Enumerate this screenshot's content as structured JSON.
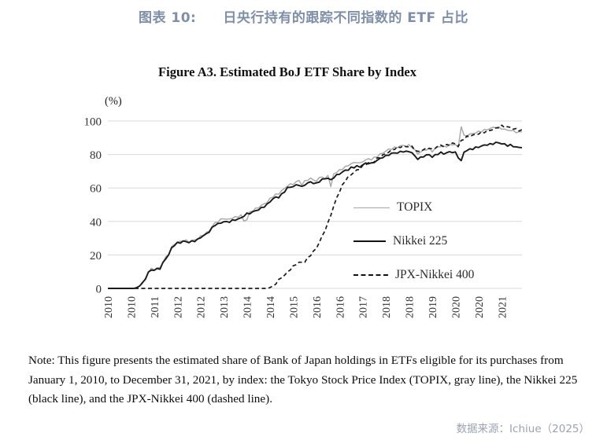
{
  "header": {
    "tag": "图表 10:",
    "title": "日央行持有的跟踪不同指数的 ETF 占比",
    "color": "#7e8fa9"
  },
  "chart_data": {
    "type": "line",
    "title": "Figure A3.  Estimated BoJ ETF Share by Index",
    "ylabel": "(%)",
    "ylim": [
      0,
      100
    ],
    "yticks": [
      0,
      20,
      40,
      60,
      80,
      100
    ],
    "grid": true,
    "legend_position": "inside-right",
    "x_start": "2010-01",
    "x_end": "2021-12",
    "x_unit": "month",
    "xtick_interval_months": 8,
    "xtick_labels": [
      "2010",
      "2010",
      "2011",
      "2012",
      "2012",
      "2013",
      "2014",
      "2014",
      "2015",
      "2016",
      "2016",
      "2017",
      "2018",
      "2018",
      "2019",
      "2020",
      "2020",
      "2021"
    ],
    "grid_color": "#d9d9d9",
    "series": [
      {
        "name": "TOPIX",
        "color": "#a6a6a6",
        "style": "solid",
        "values": [
          0,
          0,
          0,
          0,
          0,
          0,
          0,
          0,
          0,
          0,
          0.5,
          1.5,
          3,
          6,
          10,
          11.5,
          11.5,
          12,
          12.5,
          15.5,
          18.5,
          20.5,
          24.5,
          26.5,
          27.5,
          28,
          28.5,
          28.5,
          28,
          28.5,
          29,
          29.5,
          31,
          32,
          33,
          34.5,
          37,
          39,
          40,
          41,
          42,
          41,
          41.5,
          42,
          42.5,
          43,
          43.5,
          40.5,
          41,
          45.5,
          46.5,
          47.5,
          48.5,
          49.5,
          50.5,
          51.5,
          53.5,
          55,
          56,
          56.5,
          58.5,
          59.5,
          61.5,
          62,
          62.5,
          63.5,
          64.5,
          62,
          64,
          65,
          65.5,
          65,
          64,
          66,
          67,
          65,
          68,
          60.5,
          68.5,
          69.5,
          70.5,
          71.5,
          72.5,
          73.5,
          74.5,
          75,
          75.5,
          74.5,
          76,
          76.5,
          77.5,
          77,
          78,
          79,
          80,
          81,
          82,
          83,
          83.5,
          84,
          84.5,
          85,
          85.5,
          85,
          85.5,
          84.5,
          82.5,
          80.5,
          81.5,
          82.5,
          83,
          83.5,
          82,
          83.5,
          84.5,
          85,
          84.5,
          85,
          85.5,
          86,
          86,
          84,
          97,
          91,
          91.5,
          92,
          92.5,
          93,
          93.5,
          94,
          94.5,
          95,
          95.5,
          96,
          96.5,
          96,
          95.5,
          95,
          94.5,
          94.5,
          94,
          93.5,
          93.2,
          93.8
        ]
      },
      {
        "name": "Nikkei 225",
        "color": "#1a1a1a",
        "style": "solid",
        "values": [
          0,
          0,
          0,
          0,
          0,
          0,
          0,
          0,
          0,
          0,
          0.5,
          1.5,
          3,
          6,
          9.5,
          11,
          11,
          11.5,
          12,
          15,
          18,
          20,
          24,
          26,
          27,
          27.5,
          28,
          28,
          27.5,
          28,
          28.5,
          29,
          30.5,
          31.5,
          32.5,
          34,
          36,
          38,
          38.5,
          39,
          40,
          39.5,
          40,
          40.5,
          41,
          41.5,
          42,
          43.5,
          44.5,
          45,
          45.5,
          46.5,
          47,
          48,
          49,
          50,
          52,
          53.5,
          54.5,
          54.5,
          56,
          58,
          60,
          60.5,
          61,
          61.5,
          62,
          60.5,
          62,
          63,
          63.5,
          63,
          62.5,
          64,
          65,
          65.5,
          66,
          64.5,
          66.5,
          67.5,
          68.5,
          69.5,
          70.5,
          71,
          72,
          72.5,
          73,
          72.5,
          74,
          74.5,
          75,
          74.5,
          75.5,
          76.5,
          77.5,
          78.5,
          79,
          80,
          80.5,
          81,
          81,
          81.5,
          82,
          81.5,
          82,
          81,
          79,
          77.5,
          78,
          79,
          79.5,
          80,
          78.5,
          79.5,
          80.5,
          81,
          80.5,
          81,
          81.5,
          81.5,
          81,
          78.5,
          76,
          81.5,
          82.5,
          83,
          83.5,
          84,
          84.5,
          85,
          85.5,
          86,
          86,
          86.5,
          87,
          87,
          86.5,
          86,
          85.5,
          85.5,
          85,
          84.5,
          84,
          84.5
        ]
      },
      {
        "name": "JPX-Nikkei 400",
        "color": "#1a1a1a",
        "style": "dashed",
        "values": [
          0,
          0,
          0,
          0,
          0,
          0,
          0,
          0,
          0,
          0,
          0,
          0,
          0,
          0,
          0,
          0,
          0,
          0,
          0,
          0,
          0,
          0,
          0,
          0,
          0,
          0,
          0,
          0,
          0,
          0,
          0,
          0,
          0,
          0,
          0,
          0,
          0,
          0,
          0,
          0,
          0,
          0,
          0,
          0,
          0,
          0,
          0,
          0,
          0,
          0,
          0,
          0,
          0,
          0,
          0,
          0,
          0.5,
          1.5,
          3,
          5,
          6.5,
          8,
          9.5,
          11.5,
          13,
          14.5,
          15.5,
          15.5,
          16,
          18,
          20,
          22,
          24,
          27.5,
          31,
          35,
          39,
          44,
          49,
          54,
          58,
          61.5,
          64.5,
          66.5,
          68,
          69.5,
          70.5,
          71.5,
          73,
          74,
          75,
          74.5,
          76,
          77.5,
          78.5,
          79.5,
          80.5,
          81.5,
          82.5,
          83.5,
          84,
          84.5,
          85,
          84.5,
          85,
          84.5,
          83,
          81.5,
          82,
          83,
          83.5,
          84,
          83,
          84,
          85,
          85.5,
          85,
          85.5,
          86,
          86.5,
          86.5,
          85,
          88,
          89.5,
          90.5,
          91,
          91.5,
          92,
          92.5,
          93,
          93.5,
          94,
          94.5,
          95,
          95.5,
          96.5,
          97,
          96.5,
          96.5,
          96,
          95.5,
          95,
          94.5,
          94.5
        ]
      }
    ]
  },
  "note": {
    "text": "Note: This figure presents the estimated share of Bank of Japan holdings in ETFs eligible for its purchases from January 1, 2010, to December 31, 2021, by index: the Tokyo Stock Price Index (TOPIX, gray line), the Nikkei 225 (black line), and the JPX-Nikkei 400 (dashed line)."
  },
  "source": {
    "text": "数据来源：Ichiue（2025）"
  }
}
